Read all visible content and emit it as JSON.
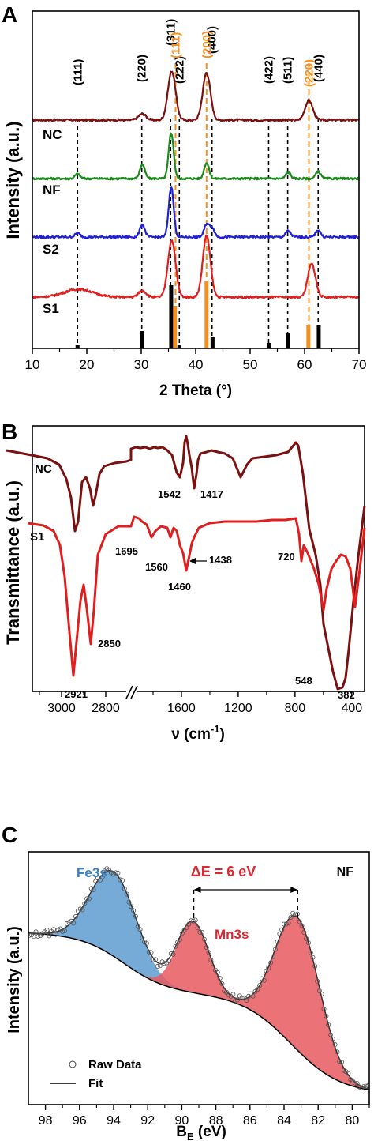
{
  "panels": {
    "A": {
      "letter": "A",
      "ylabel": "Intensity (a.u.)",
      "xlabel": "2 Theta (°)",
      "xticks": [
        10,
        20,
        30,
        40,
        50,
        60,
        70
      ],
      "sample_labels": [
        "NC",
        "NF",
        "S2",
        "S1"
      ],
      "black_labels": [
        {
          "text": "(111)",
          "x": 18.3
        },
        {
          "text": "(220)",
          "x": 30.1
        },
        {
          "text": "(311)",
          "x": 35.4
        },
        {
          "text": "(222)",
          "x": 37.0
        },
        {
          "text": "(400)",
          "x": 43.0
        },
        {
          "text": "(422)",
          "x": 53.4
        },
        {
          "text": "(511)",
          "x": 56.9
        },
        {
          "text": "(440)",
          "x": 62.5
        }
      ],
      "orange_labels": [
        {
          "text": "(111)",
          "x": 36.3
        },
        {
          "text": "(200)",
          "x": 42.0
        },
        {
          "text": "(220)",
          "x": 60.8
        }
      ],
      "colors": {
        "NC": "#7b1010",
        "NF": "#1a8a1a",
        "S2": "#1f1fd6",
        "S1": "#e01e1e",
        "orange": "#f5901e"
      }
    },
    "B": {
      "letter": "B",
      "ylabel": "Transmittance (a.u.)",
      "xlabel_main": "ν (cm",
      "xlabel_sup": "-1",
      "xlabel_end": ")",
      "xticks_left": [
        3000,
        2800
      ],
      "xticks_right": [
        1600,
        1200,
        800,
        400
      ],
      "sample_labels": [
        "NC",
        "S1"
      ],
      "annotations": [
        "1542",
        "1417",
        "1695",
        "1560",
        "1438",
        "1460",
        "720",
        "2850",
        "2921",
        "548",
        "382"
      ]
    },
    "C": {
      "letter": "C",
      "ylabel": "Intensity (a.u.)",
      "xlabel_main": "B",
      "xlabel_sub": "E",
      "xlabel_end": " (eV)",
      "xticks": [
        98,
        96,
        94,
        92,
        90,
        88,
        86,
        84,
        82,
        80
      ],
      "sample": "NF",
      "fe_label": "Fe3s",
      "mn_label": "Mn3s",
      "delta_label": "ΔE = 6 eV",
      "legend": [
        "Raw Data",
        "Fit"
      ],
      "colors": {
        "fe": "#6fa7d6",
        "mn": "#e8595f",
        "fe_text": "#3a7fc0",
        "mn_text": "#e0262e"
      }
    }
  },
  "chart_data": [
    {
      "type": "line",
      "title": "",
      "xlabel": "2 Theta (°)",
      "ylabel": "Intensity (a.u.)",
      "xlim": [
        10,
        70
      ],
      "series": [
        {
          "name": "NC",
          "peaks": [
            {
              "x": 30.2,
              "h": 8
            },
            {
              "x": 35.6,
              "h": 62
            },
            {
              "x": 42.0,
              "h": 60
            },
            {
              "x": 60.8,
              "h": 25
            }
          ],
          "baseline": 0
        },
        {
          "name": "NF",
          "peaks": [
            {
              "x": 18.3,
              "h": 6
            },
            {
              "x": 30.2,
              "h": 18
            },
            {
              "x": 35.5,
              "h": 58
            },
            {
              "x": 42.0,
              "h": 20
            },
            {
              "x": 57.0,
              "h": 8
            },
            {
              "x": 62.5,
              "h": 9
            }
          ],
          "baseline": 0
        },
        {
          "name": "S2",
          "peaks": [
            {
              "x": 18.3,
              "h": 5
            },
            {
              "x": 30.2,
              "h": 16
            },
            {
              "x": 35.5,
              "h": 64
            },
            {
              "x": 42.0,
              "h": 16
            },
            {
              "x": 43.0,
              "h": 12
            },
            {
              "x": 57.0,
              "h": 8
            },
            {
              "x": 62.5,
              "h": 9
            }
          ],
          "baseline": 0
        },
        {
          "name": "S1",
          "peaks": [
            {
              "x": 18.5,
              "h": 10
            },
            {
              "x": 30.2,
              "h": 8
            },
            {
              "x": 35.6,
              "h": 72
            },
            {
              "x": 42.0,
              "h": 78
            },
            {
              "x": 61.3,
              "h": 42
            }
          ],
          "baseline": 0
        }
      ],
      "reference_bars_black": [
        {
          "x": 18.3,
          "h": 5
        },
        {
          "x": 30.1,
          "h": 22
        },
        {
          "x": 35.5,
          "h": 80
        },
        {
          "x": 37.0,
          "h": 4
        },
        {
          "x": 43.1,
          "h": 14
        },
        {
          "x": 53.4,
          "h": 7
        },
        {
          "x": 57.0,
          "h": 20
        },
        {
          "x": 62.6,
          "h": 30
        }
      ],
      "reference_bars_orange": [
        {
          "x": 36.2,
          "h": 54
        },
        {
          "x": 42.0,
          "h": 85
        },
        {
          "x": 60.7,
          "h": 30
        }
      ]
    },
    {
      "type": "line",
      "title": "",
      "xlabel": "ν (cm-1)",
      "ylabel": "Transmittance (a.u.)",
      "x_broken_axis": [
        [
          3100,
          2700
        ],
        [
          1850,
          310
        ]
      ],
      "series": [
        {
          "name": "NC",
          "bands": [
            2921,
            2850,
            1542,
            1417
          ]
        },
        {
          "name": "S1",
          "bands": [
            2921,
            2850,
            1695,
            1560,
            1460,
            1438,
            720,
            548,
            382
          ]
        }
      ]
    },
    {
      "type": "scatter",
      "title": "",
      "xlabel": "BE (eV)",
      "ylabel": "Intensity (a.u.)",
      "xlim": [
        99,
        79
      ],
      "series": [
        {
          "name": "Raw Data",
          "peaks": [
            {
              "x": 94.0,
              "fwhm": 3.4
            },
            {
              "x": 89.3,
              "fwhm": 2.4
            },
            {
              "x": 83.2,
              "fwhm": 3.0
            }
          ]
        },
        {
          "name": "Fit",
          "peaks": [
            {
              "x": 94.0
            },
            {
              "x": 89.3
            },
            {
              "x": 83.2
            }
          ]
        }
      ],
      "components": [
        {
          "name": "Fe3s",
          "center": 94.0
        },
        {
          "name": "Mn3s",
          "centers": [
            89.3,
            83.2
          ]
        }
      ],
      "annotation": {
        "text": "ΔE = 6 eV",
        "from": 89.3,
        "to": 83.2
      }
    }
  ]
}
